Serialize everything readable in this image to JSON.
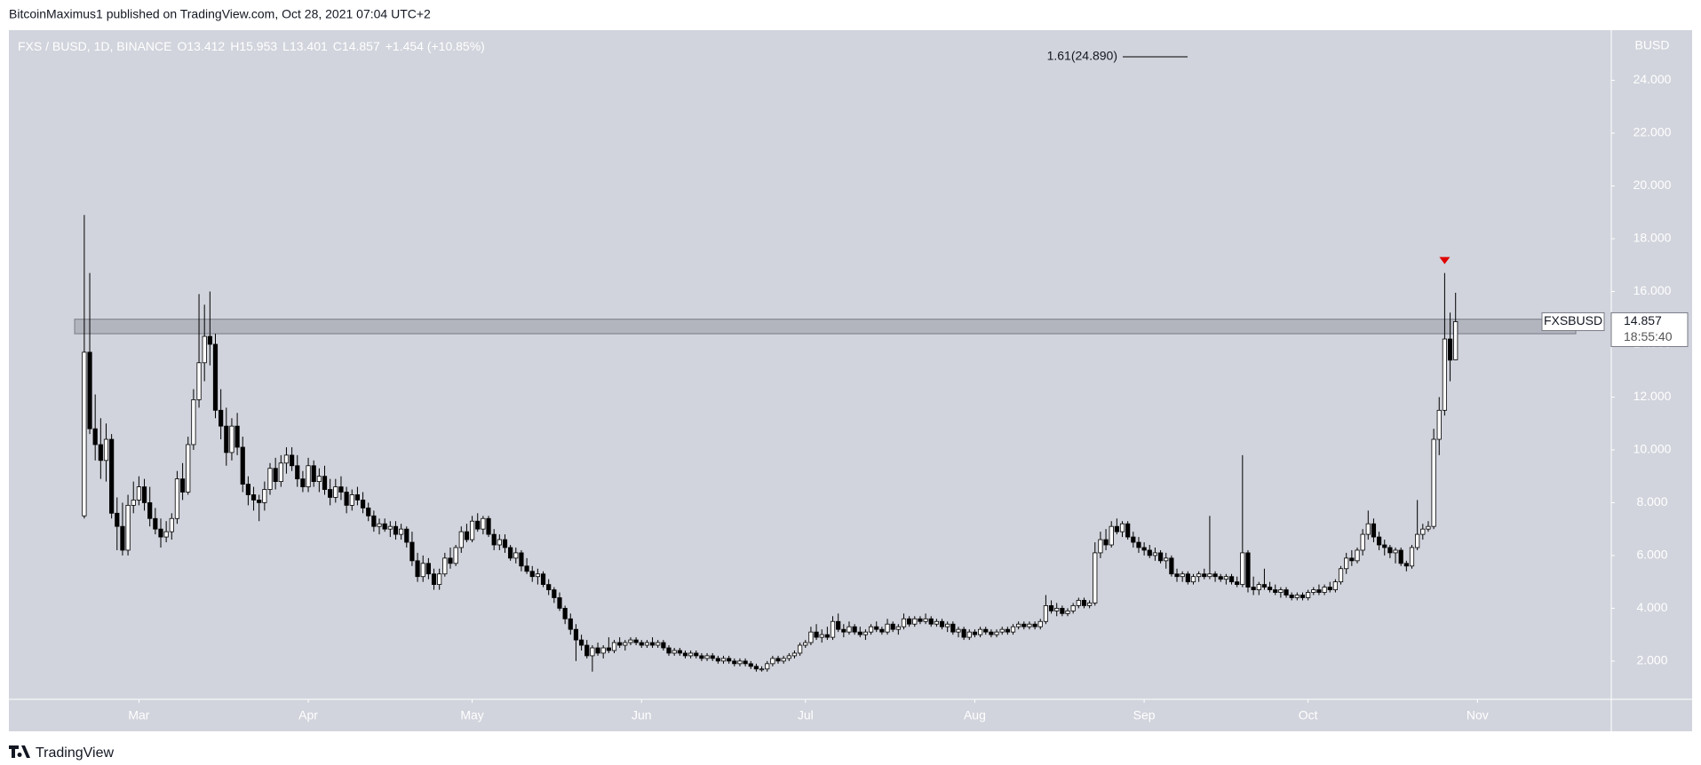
{
  "chart_data": {
    "type": "candlestick",
    "header": "BitcoinMaximus1 published on TradingView.com, Oct 28, 2021 07:04 UTC+2",
    "symbol": "FXS / BUSD, 1D, BINANCE",
    "legend_keys": [
      "O",
      "H",
      "L",
      "C"
    ],
    "change": "+1.454 (+10.85%)",
    "axis_unit": "BUSD",
    "ticker": "FXSBUSD",
    "countdown": "18:55:40",
    "fib_label": "1.61(24.890)",
    "fib_level": 24.89,
    "zone": [
      14.4,
      14.95
    ],
    "footer": "TradingView",
    "up_color": "#ffffff",
    "down_color": "#000000",
    "background": "#d1d4dc",
    "xlim": [
      -13.8,
      279.5
    ],
    "xticks": [
      {
        "value": 10,
        "label": "Mar"
      },
      {
        "value": 41,
        "label": "Apr"
      },
      {
        "value": 71,
        "label": "May"
      },
      {
        "value": 102,
        "label": "Jun"
      },
      {
        "value": 132,
        "label": "Jul"
      },
      {
        "value": 163,
        "label": "Aug"
      },
      {
        "value": 194,
        "label": "Sep"
      },
      {
        "value": 224,
        "label": "Oct"
      },
      {
        "value": 255,
        "label": "Nov"
      }
    ],
    "ylim": [
      0.55,
      25.9
    ],
    "yticks": [
      {
        "value": 2,
        "label": "2.000"
      },
      {
        "value": 4,
        "label": "4.000"
      },
      {
        "value": 6,
        "label": "6.000"
      },
      {
        "value": 8,
        "label": "8.000"
      },
      {
        "value": 10,
        "label": "10.000"
      },
      {
        "value": 12,
        "label": "12.000"
      },
      {
        "value": 14,
        "label": "14.000"
      },
      {
        "value": 16,
        "label": "16.000"
      },
      {
        "value": 18,
        "label": "18.000"
      },
      {
        "value": 20,
        "label": "20.000"
      },
      {
        "value": 22,
        "label": "22.000"
      },
      {
        "value": 24,
        "label": "24.000"
      }
    ],
    "ohlc": [
      [
        7.5,
        18.9,
        7.4,
        13.7
      ],
      [
        13.7,
        16.7,
        10.6,
        10.8
      ],
      [
        10.8,
        12.1,
        9.6,
        10.2
      ],
      [
        10.2,
        11.2,
        8.9,
        9.6
      ],
      [
        9.6,
        11.0,
        8.8,
        10.4
      ],
      [
        10.4,
        10.6,
        7.4,
        7.6
      ],
      [
        7.6,
        8.2,
        6.2,
        7.1
      ],
      [
        7.1,
        8.0,
        6.0,
        6.2
      ],
      [
        6.2,
        8.3,
        6.0,
        7.9
      ],
      [
        7.9,
        8.8,
        7.6,
        8.1
      ],
      [
        8.1,
        9.0,
        7.9,
        8.6
      ],
      [
        8.6,
        8.9,
        7.7,
        8.0
      ],
      [
        8.0,
        8.6,
        7.1,
        7.4
      ],
      [
        7.4,
        7.8,
        6.8,
        7.0
      ],
      [
        7.0,
        7.4,
        6.3,
        6.7
      ],
      [
        6.7,
        7.3,
        6.5,
        6.9
      ],
      [
        6.9,
        7.6,
        6.6,
        7.4
      ],
      [
        7.4,
        9.2,
        7.2,
        8.9
      ],
      [
        8.9,
        9.5,
        8.1,
        8.4
      ],
      [
        8.4,
        10.5,
        8.3,
        10.2
      ],
      [
        10.2,
        12.3,
        10.0,
        11.9
      ],
      [
        11.9,
        15.9,
        11.6,
        13.3
      ],
      [
        13.3,
        15.5,
        12.6,
        14.3
      ],
      [
        14.3,
        16.0,
        13.2,
        14.0
      ],
      [
        14.0,
        14.4,
        11.2,
        11.5
      ],
      [
        11.5,
        12.3,
        10.4,
        10.9
      ],
      [
        10.9,
        11.6,
        9.4,
        9.9
      ],
      [
        9.9,
        11.2,
        9.6,
        10.9
      ],
      [
        10.9,
        11.4,
        9.8,
        10.1
      ],
      [
        10.1,
        10.5,
        8.4,
        8.7
      ],
      [
        8.7,
        9.0,
        7.9,
        8.3
      ],
      [
        8.3,
        8.6,
        7.7,
        8.1
      ],
      [
        8.1,
        8.3,
        7.3,
        8.0
      ],
      [
        8.0,
        8.8,
        7.7,
        8.5
      ],
      [
        8.5,
        9.5,
        8.3,
        9.3
      ],
      [
        9.3,
        9.7,
        8.5,
        8.8
      ],
      [
        8.8,
        9.8,
        8.6,
        9.5
      ],
      [
        9.5,
        10.1,
        9.1,
        9.8
      ],
      [
        9.8,
        10.1,
        9.2,
        9.4
      ],
      [
        9.4,
        9.8,
        8.6,
        8.9
      ],
      [
        8.9,
        9.2,
        8.4,
        8.6
      ],
      [
        8.6,
        9.7,
        8.4,
        9.4
      ],
      [
        9.4,
        9.6,
        8.6,
        8.8
      ],
      [
        8.8,
        9.3,
        8.4,
        9.0
      ],
      [
        9.0,
        9.4,
        8.3,
        8.5
      ],
      [
        8.5,
        8.9,
        7.9,
        8.2
      ],
      [
        8.2,
        8.9,
        8.0,
        8.6
      ],
      [
        8.6,
        9.0,
        8.1,
        8.4
      ],
      [
        8.4,
        8.6,
        7.6,
        7.9
      ],
      [
        7.9,
        8.5,
        7.7,
        8.3
      ],
      [
        8.3,
        8.6,
        7.9,
        8.1
      ],
      [
        8.1,
        8.4,
        7.6,
        7.8
      ],
      [
        7.8,
        8.0,
        7.3,
        7.5
      ],
      [
        7.5,
        7.7,
        6.9,
        7.1
      ],
      [
        7.1,
        7.4,
        6.8,
        7.2
      ],
      [
        7.2,
        7.4,
        6.9,
        7.0
      ],
      [
        7.0,
        7.3,
        6.7,
        7.1
      ],
      [
        7.1,
        7.3,
        6.6,
        6.8
      ],
      [
        6.8,
        7.2,
        6.6,
        7.0
      ],
      [
        7.0,
        7.1,
        6.3,
        6.5
      ],
      [
        6.5,
        6.9,
        5.6,
        5.8
      ],
      [
        5.8,
        6.1,
        5.0,
        5.2
      ],
      [
        5.2,
        6.0,
        5.0,
        5.7
      ],
      [
        5.7,
        5.9,
        5.1,
        5.3
      ],
      [
        5.3,
        5.5,
        4.7,
        4.9
      ],
      [
        4.9,
        5.5,
        4.7,
        5.3
      ],
      [
        5.3,
        6.1,
        5.2,
        5.9
      ],
      [
        5.9,
        6.3,
        5.5,
        5.7
      ],
      [
        5.7,
        6.4,
        5.6,
        6.3
      ],
      [
        6.3,
        7.1,
        6.1,
        6.9
      ],
      [
        6.9,
        7.2,
        6.5,
        6.6
      ],
      [
        6.6,
        7.5,
        6.5,
        7.3
      ],
      [
        7.3,
        7.6,
        6.9,
        7.0
      ],
      [
        7.0,
        7.5,
        6.8,
        7.4
      ],
      [
        7.4,
        7.5,
        6.7,
        6.8
      ],
      [
        6.8,
        7.0,
        6.2,
        6.4
      ],
      [
        6.4,
        6.8,
        6.2,
        6.6
      ],
      [
        6.6,
        6.8,
        6.1,
        6.3
      ],
      [
        6.3,
        6.4,
        5.8,
        5.9
      ],
      [
        5.9,
        6.3,
        5.7,
        6.1
      ],
      [
        6.1,
        6.2,
        5.4,
        5.6
      ],
      [
        5.6,
        5.9,
        5.3,
        5.4
      ],
      [
        5.4,
        5.6,
        5.0,
        5.2
      ],
      [
        5.2,
        5.5,
        4.9,
        5.3
      ],
      [
        5.3,
        5.4,
        4.8,
        4.9
      ],
      [
        4.9,
        5.1,
        4.5,
        4.7
      ],
      [
        4.7,
        4.8,
        4.2,
        4.4
      ],
      [
        4.4,
        4.6,
        3.9,
        4.0
      ],
      [
        4.0,
        4.1,
        3.4,
        3.6
      ],
      [
        3.6,
        3.8,
        3.0,
        3.2
      ],
      [
        3.2,
        3.4,
        2.0,
        2.8
      ],
      [
        2.8,
        3.0,
        2.4,
        2.6
      ],
      [
        2.6,
        2.8,
        2.1,
        2.2
      ],
      [
        2.2,
        2.6,
        1.6,
        2.5
      ],
      [
        2.5,
        2.7,
        2.2,
        2.3
      ],
      [
        2.3,
        2.6,
        2.1,
        2.5
      ],
      [
        2.5,
        2.9,
        2.3,
        2.4
      ],
      [
        2.4,
        2.8,
        2.3,
        2.7
      ],
      [
        2.7,
        2.9,
        2.5,
        2.6
      ],
      [
        2.6,
        2.8,
        2.4,
        2.7
      ],
      [
        2.7,
        2.9,
        2.6,
        2.8
      ],
      [
        2.8,
        2.9,
        2.6,
        2.7
      ],
      [
        2.7,
        2.8,
        2.5,
        2.6
      ],
      [
        2.6,
        2.8,
        2.5,
        2.7
      ],
      [
        2.7,
        2.9,
        2.5,
        2.6
      ],
      [
        2.6,
        2.8,
        2.5,
        2.7
      ],
      [
        2.7,
        2.8,
        2.4,
        2.5
      ],
      [
        2.5,
        2.6,
        2.2,
        2.3
      ],
      [
        2.3,
        2.5,
        2.2,
        2.4
      ],
      [
        2.4,
        2.5,
        2.2,
        2.3
      ],
      [
        2.3,
        2.4,
        2.1,
        2.2
      ],
      [
        2.2,
        2.4,
        2.1,
        2.3
      ],
      [
        2.3,
        2.4,
        2.1,
        2.2
      ],
      [
        2.2,
        2.3,
        2.0,
        2.1
      ],
      [
        2.1,
        2.3,
        2.0,
        2.2
      ],
      [
        2.2,
        2.3,
        2.0,
        2.1
      ],
      [
        2.1,
        2.2,
        1.9,
        2.0
      ],
      [
        2.0,
        2.2,
        1.9,
        2.1
      ],
      [
        2.1,
        2.2,
        1.9,
        2.0
      ],
      [
        2.0,
        2.1,
        1.8,
        1.9
      ],
      [
        1.9,
        2.1,
        1.8,
        2.0
      ],
      [
        2.0,
        2.1,
        1.8,
        1.9
      ],
      [
        1.9,
        2.0,
        1.7,
        1.8
      ],
      [
        1.8,
        1.9,
        1.6,
        1.7
      ],
      [
        1.7,
        1.8,
        1.6,
        1.7
      ],
      [
        1.7,
        2.0,
        1.6,
        1.9
      ],
      [
        1.9,
        2.2,
        1.8,
        2.1
      ],
      [
        2.1,
        2.2,
        1.9,
        2.0
      ],
      [
        2.0,
        2.2,
        1.9,
        2.1
      ],
      [
        2.1,
        2.3,
        2.0,
        2.2
      ],
      [
        2.2,
        2.4,
        2.1,
        2.3
      ],
      [
        2.3,
        2.7,
        2.2,
        2.6
      ],
      [
        2.6,
        2.8,
        2.5,
        2.7
      ],
      [
        2.7,
        3.3,
        2.6,
        3.1
      ],
      [
        3.1,
        3.4,
        2.8,
        2.9
      ],
      [
        2.9,
        3.2,
        2.7,
        3.0
      ],
      [
        3.0,
        3.3,
        2.8,
        2.9
      ],
      [
        2.9,
        3.7,
        2.8,
        3.5
      ],
      [
        3.5,
        3.8,
        3.1,
        3.2
      ],
      [
        3.2,
        3.4,
        2.9,
        3.1
      ],
      [
        3.1,
        3.5,
        3.0,
        3.3
      ],
      [
        3.3,
        3.4,
        3.0,
        3.1
      ],
      [
        3.1,
        3.3,
        2.9,
        3.0
      ],
      [
        3.0,
        3.2,
        2.8,
        3.1
      ],
      [
        3.1,
        3.4,
        3.0,
        3.3
      ],
      [
        3.3,
        3.5,
        3.1,
        3.2
      ],
      [
        3.2,
        3.3,
        3.0,
        3.1
      ],
      [
        3.1,
        3.6,
        3.0,
        3.4
      ],
      [
        3.4,
        3.5,
        3.1,
        3.2
      ],
      [
        3.2,
        3.4,
        3.0,
        3.3
      ],
      [
        3.3,
        3.8,
        3.2,
        3.6
      ],
      [
        3.6,
        3.7,
        3.3,
        3.4
      ],
      [
        3.4,
        3.7,
        3.3,
        3.6
      ],
      [
        3.6,
        3.7,
        3.4,
        3.5
      ],
      [
        3.5,
        3.8,
        3.4,
        3.6
      ],
      [
        3.6,
        3.7,
        3.3,
        3.4
      ],
      [
        3.4,
        3.6,
        3.3,
        3.5
      ],
      [
        3.5,
        3.6,
        3.2,
        3.3
      ],
      [
        3.3,
        3.5,
        3.1,
        3.4
      ],
      [
        3.4,
        3.5,
        3.0,
        3.1
      ],
      [
        3.1,
        3.3,
        2.9,
        3.2
      ],
      [
        3.2,
        3.3,
        2.8,
        2.9
      ],
      [
        2.9,
        3.2,
        2.8,
        3.1
      ],
      [
        3.1,
        3.2,
        2.9,
        3.0
      ],
      [
        3.0,
        3.3,
        2.9,
        3.2
      ],
      [
        3.2,
        3.3,
        3.0,
        3.1
      ],
      [
        3.1,
        3.2,
        2.9,
        3.0
      ],
      [
        3.0,
        3.2,
        2.9,
        3.1
      ],
      [
        3.1,
        3.3,
        3.0,
        3.2
      ],
      [
        3.2,
        3.3,
        3.0,
        3.1
      ],
      [
        3.1,
        3.4,
        3.0,
        3.3
      ],
      [
        3.3,
        3.5,
        3.2,
        3.4
      ],
      [
        3.4,
        3.5,
        3.2,
        3.3
      ],
      [
        3.3,
        3.5,
        3.2,
        3.4
      ],
      [
        3.4,
        3.5,
        3.2,
        3.3
      ],
      [
        3.3,
        3.6,
        3.2,
        3.5
      ],
      [
        3.5,
        4.5,
        3.4,
        4.1
      ],
      [
        4.1,
        4.3,
        3.8,
        3.9
      ],
      [
        3.9,
        4.2,
        3.7,
        4.0
      ],
      [
        4.0,
        4.1,
        3.7,
        3.8
      ],
      [
        3.8,
        4.0,
        3.7,
        3.9
      ],
      [
        3.9,
        4.2,
        3.8,
        4.1
      ],
      [
        4.1,
        4.4,
        4.0,
        4.3
      ],
      [
        4.3,
        4.4,
        4.0,
        4.1
      ],
      [
        4.1,
        4.3,
        4.0,
        4.2
      ],
      [
        4.2,
        6.5,
        4.1,
        6.1
      ],
      [
        6.1,
        6.9,
        5.9,
        6.6
      ],
      [
        6.6,
        7.0,
        6.2,
        6.4
      ],
      [
        6.4,
        7.3,
        6.3,
        7.1
      ],
      [
        7.1,
        7.4,
        6.8,
        6.9
      ],
      [
        6.9,
        7.3,
        6.7,
        7.2
      ],
      [
        7.2,
        7.3,
        6.6,
        6.7
      ],
      [
        6.7,
        6.9,
        6.3,
        6.5
      ],
      [
        6.5,
        6.7,
        6.1,
        6.3
      ],
      [
        6.3,
        6.5,
        6.0,
        6.2
      ],
      [
        6.2,
        6.4,
        5.9,
        6.0
      ],
      [
        6.0,
        6.3,
        5.8,
        6.1
      ],
      [
        6.1,
        6.2,
        5.7,
        5.8
      ],
      [
        5.8,
        6.1,
        5.5,
        5.9
      ],
      [
        5.9,
        6.0,
        5.2,
        5.3
      ],
      [
        5.3,
        5.5,
        5.0,
        5.2
      ],
      [
        5.2,
        5.4,
        5.0,
        5.3
      ],
      [
        5.3,
        5.4,
        4.9,
        5.0
      ],
      [
        5.0,
        5.3,
        4.9,
        5.2
      ],
      [
        5.2,
        5.4,
        5.0,
        5.3
      ],
      [
        5.3,
        5.5,
        5.1,
        5.2
      ],
      [
        5.2,
        7.5,
        5.1,
        5.3
      ],
      [
        5.3,
        5.4,
        5.0,
        5.2
      ],
      [
        5.2,
        5.3,
        5.0,
        5.1
      ],
      [
        5.1,
        5.3,
        4.9,
        5.2
      ],
      [
        5.2,
        5.3,
        4.9,
        5.0
      ],
      [
        5.0,
        5.2,
        4.8,
        4.9
      ],
      [
        4.9,
        9.8,
        4.8,
        6.1
      ],
      [
        6.1,
        6.2,
        4.6,
        4.8
      ],
      [
        4.8,
        5.2,
        4.5,
        4.7
      ],
      [
        4.7,
        5.0,
        4.5,
        4.9
      ],
      [
        4.9,
        5.5,
        4.7,
        4.8
      ],
      [
        4.8,
        5.0,
        4.6,
        4.7
      ],
      [
        4.7,
        4.9,
        4.5,
        4.6
      ],
      [
        4.6,
        4.8,
        4.4,
        4.7
      ],
      [
        4.7,
        4.8,
        4.4,
        4.5
      ],
      [
        4.5,
        4.6,
        4.3,
        4.4
      ],
      [
        4.4,
        4.6,
        4.3,
        4.5
      ],
      [
        4.5,
        4.6,
        4.3,
        4.4
      ],
      [
        4.4,
        4.7,
        4.3,
        4.6
      ],
      [
        4.6,
        4.8,
        4.5,
        4.7
      ],
      [
        4.7,
        4.9,
        4.5,
        4.6
      ],
      [
        4.6,
        4.9,
        4.5,
        4.8
      ],
      [
        4.8,
        5.0,
        4.6,
        4.7
      ],
      [
        4.7,
        5.1,
        4.6,
        5.0
      ],
      [
        5.0,
        5.6,
        4.9,
        5.5
      ],
      [
        5.5,
        6.1,
        5.3,
        5.9
      ],
      [
        5.9,
        6.2,
        5.6,
        5.8
      ],
      [
        5.8,
        6.3,
        5.7,
        6.2
      ],
      [
        6.2,
        7.0,
        6.0,
        6.8
      ],
      [
        6.8,
        7.7,
        6.6,
        7.2
      ],
      [
        7.2,
        7.4,
        6.5,
        6.7
      ],
      [
        6.7,
        6.9,
        6.2,
        6.4
      ],
      [
        6.4,
        6.6,
        6.0,
        6.3
      ],
      [
        6.3,
        6.4,
        5.9,
        6.1
      ],
      [
        6.1,
        6.3,
        5.7,
        6.2
      ],
      [
        6.2,
        6.3,
        5.6,
        5.7
      ],
      [
        5.7,
        5.8,
        5.4,
        5.6
      ],
      [
        5.6,
        6.4,
        5.5,
        6.3
      ],
      [
        6.3,
        8.1,
        6.2,
        6.8
      ],
      [
        6.8,
        7.2,
        6.6,
        7.0
      ],
      [
        7.0,
        7.3,
        6.9,
        7.1
      ],
      [
        7.1,
        10.8,
        7.0,
        10.4
      ],
      [
        10.4,
        12.0,
        9.8,
        11.5
      ],
      [
        11.5,
        16.7,
        11.3,
        14.2
      ],
      [
        14.2,
        15.2,
        12.6,
        13.4
      ],
      [
        13.412,
        15.953,
        13.401,
        14.857
      ]
    ]
  }
}
